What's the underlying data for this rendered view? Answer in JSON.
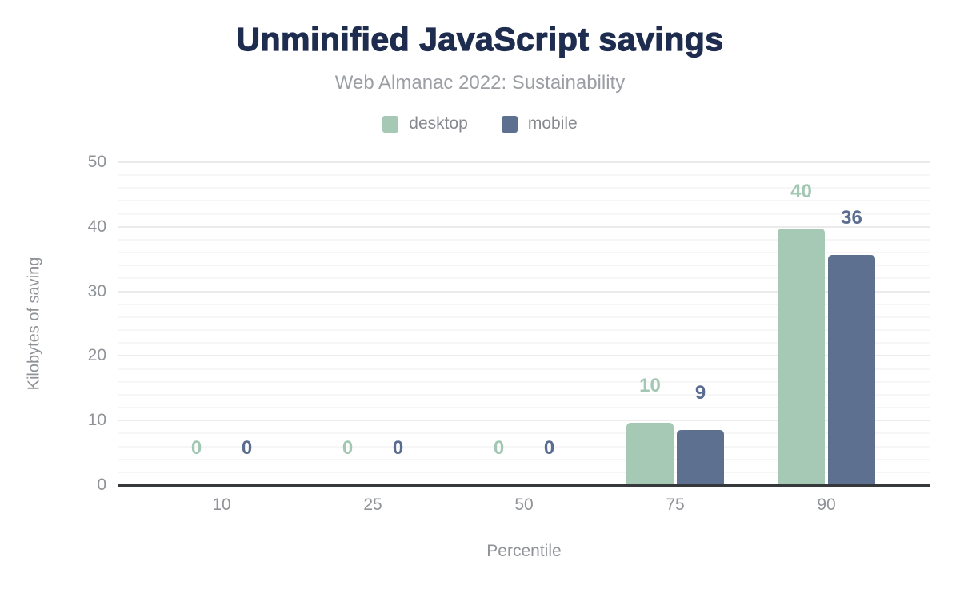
{
  "chart_data": {
    "type": "bar",
    "title": "Unminified JavaScript savings",
    "subtitle": "Web Almanac 2022: Sustainability",
    "xlabel": "Percentile",
    "ylabel": "Kilobytes of saving",
    "categories": [
      "10",
      "25",
      "50",
      "75",
      "90"
    ],
    "series": [
      {
        "name": "desktop",
        "color": "#a5c9b5",
        "label_color": "#a2c8b3",
        "values": [
          0,
          0,
          0,
          10,
          40
        ],
        "bar_render_values": [
          0,
          0,
          0,
          9.6,
          39.7
        ]
      },
      {
        "name": "mobile",
        "color": "#5d7090",
        "label_color": "#5a6d91",
        "values": [
          0,
          0,
          0,
          9,
          36
        ],
        "bar_render_values": [
          0,
          0,
          0,
          8.6,
          35.7
        ]
      }
    ],
    "ylim": [
      0,
      50
    ],
    "yticks": [
      0,
      10,
      20,
      30,
      40,
      50
    ],
    "grid": {
      "minor_step": 2,
      "major_step": 10
    },
    "legend_position": "top"
  },
  "style": {
    "title_color": "#1e2d4f",
    "subtitle_color": "#9b9ea3",
    "axis_text_color": "#8f9398",
    "legend_text_color": "#85898e",
    "gridline_major_color": "#ebebeb",
    "gridline_minor_color": "#f6f6f6",
    "axis_line_color": "#35393c",
    "background_color": "#ffffff"
  }
}
